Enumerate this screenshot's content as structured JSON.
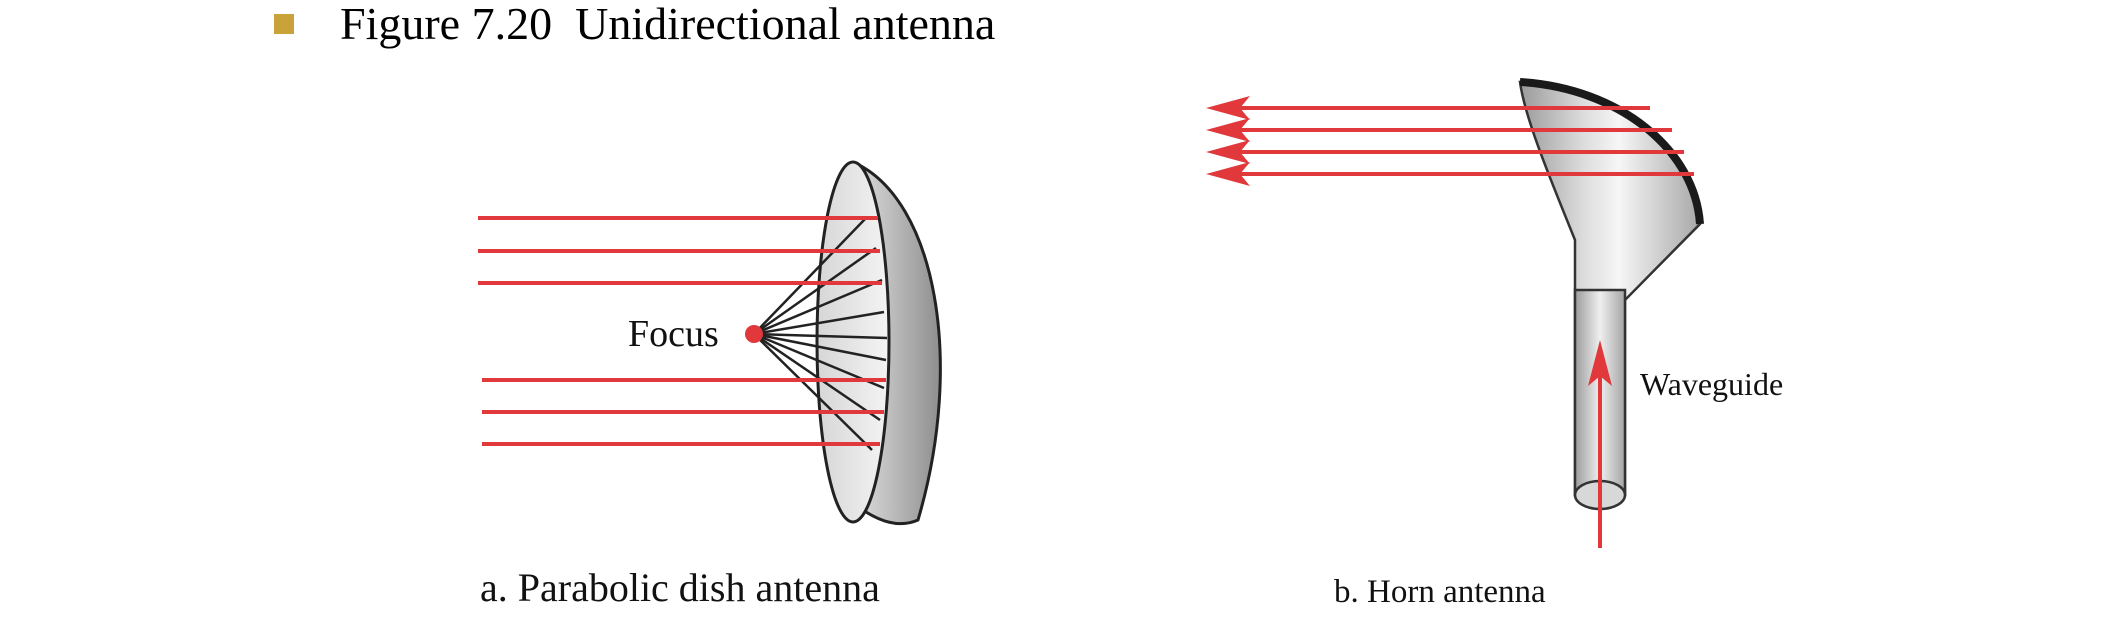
{
  "slide": {
    "bullet_color": "#C9A23A",
    "title": "Figure 7.20  Unidirectional antenna"
  },
  "diagram": {
    "ray_color": "#E0383B",
    "dish": {
      "focus_label": "Focus",
      "caption": "a. Parabolic dish antenna"
    },
    "horn": {
      "waveguide_label": "Waveguide",
      "caption": "b. Horn antenna"
    }
  }
}
